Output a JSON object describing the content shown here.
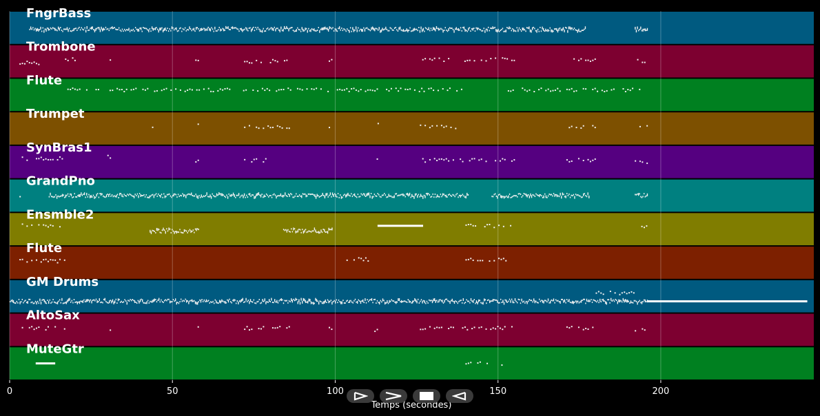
{
  "chart_data": {
    "type": "piano-roll",
    "xlabel": "Temps (secondes)",
    "xlim": [
      0,
      247
    ],
    "xticks": [
      0,
      50,
      100,
      150,
      200
    ],
    "grid": true,
    "tracks": [
      {
        "name": "FngrBass",
        "color": "#005a80",
        "segments": [
          [
            6,
            177,
            0.55,
            "dense"
          ],
          [
            192,
            196,
            0.55,
            "dense"
          ]
        ]
      },
      {
        "name": "Trombone",
        "color": "#7d0030",
        "segments": [
          [
            3,
            10,
            0.55,
            "sparse"
          ],
          [
            17,
            20,
            0.45,
            "sparse"
          ],
          [
            30,
            31,
            0.5,
            "sparse"
          ],
          [
            43,
            45,
            0.5,
            "sparse"
          ],
          [
            57,
            58,
            0.45,
            "sparse"
          ],
          [
            72,
            87,
            0.5,
            "sparse"
          ],
          [
            98,
            99,
            0.5,
            "sparse"
          ],
          [
            112,
            113,
            0.5,
            "sparse"
          ],
          [
            126,
            155,
            0.45,
            "sparse"
          ],
          [
            171,
            180,
            0.45,
            "sparse"
          ],
          [
            192,
            196,
            0.5,
            "sparse"
          ]
        ]
      },
      {
        "name": "Flute",
        "color": "#008020",
        "segments": [
          [
            17,
            139,
            0.35,
            "sparse"
          ],
          [
            153,
            194,
            0.35,
            "sparse"
          ]
        ]
      },
      {
        "name": "Trumpet",
        "color": "#7d5000",
        "segments": [
          [
            43,
            45,
            0.5,
            "sparse"
          ],
          [
            57,
            58,
            0.4,
            "sparse"
          ],
          [
            72,
            86,
            0.45,
            "sparse"
          ],
          [
            98,
            99,
            0.45,
            "sparse"
          ],
          [
            113,
            114,
            0.4,
            "sparse"
          ],
          [
            126,
            137,
            0.45,
            "sparse"
          ],
          [
            171,
            180,
            0.45,
            "sparse"
          ],
          [
            192,
            196,
            0.45,
            "sparse"
          ]
        ]
      },
      {
        "name": "SynBras1",
        "color": "#550080",
        "segments": [
          [
            3,
            17,
            0.4,
            "sparse"
          ],
          [
            30,
            31,
            0.35,
            "sparse"
          ],
          [
            57,
            58,
            0.5,
            "sparse"
          ],
          [
            72,
            79,
            0.45,
            "sparse"
          ],
          [
            98,
            99,
            0.5,
            "sparse"
          ],
          [
            112,
            113,
            0.45,
            "sparse"
          ],
          [
            126,
            155,
            0.45,
            "sparse"
          ],
          [
            171,
            180,
            0.45,
            "sparse"
          ],
          [
            192,
            196,
            0.5,
            "sparse"
          ]
        ]
      },
      {
        "name": "GrandPno",
        "color": "#008080",
        "segments": [
          [
            3,
            5,
            0.5,
            "sparse"
          ],
          [
            12,
            141,
            0.5,
            "dense"
          ],
          [
            148,
            178,
            0.5,
            "dense"
          ],
          [
            192,
            196,
            0.5,
            "dense"
          ]
        ]
      },
      {
        "name": "Ensmble2",
        "color": "#807d00",
        "segments": [
          [
            3,
            17,
            0.4,
            "sparse"
          ],
          [
            43,
            58,
            0.55,
            "dense"
          ],
          [
            84,
            99,
            0.55,
            "dense"
          ],
          [
            113,
            127,
            0.4,
            "solid"
          ],
          [
            140,
            155,
            0.4,
            "sparse"
          ],
          [
            194,
            196,
            0.45,
            "sparse"
          ]
        ]
      },
      {
        "name": "Flute",
        "color": "#7d2000",
        "segments": [
          [
            3,
            17,
            0.45,
            "sparse"
          ],
          [
            102,
            110,
            0.4,
            "sparse"
          ],
          [
            140,
            155,
            0.4,
            "sparse"
          ]
        ]
      },
      {
        "name": "GM Drums",
        "color": "#005a80",
        "segments": [
          [
            0,
            196,
            0.65,
            "dense"
          ],
          [
            180,
            192,
            0.4,
            "sparse"
          ],
          [
            196,
            245,
            0.65,
            "solid"
          ]
        ]
      },
      {
        "name": "AltoSax",
        "color": "#7d0030",
        "segments": [
          [
            3,
            17,
            0.45,
            "sparse"
          ],
          [
            30,
            31,
            0.5,
            "sparse"
          ],
          [
            57,
            58,
            0.45,
            "sparse"
          ],
          [
            72,
            86,
            0.45,
            "sparse"
          ],
          [
            98,
            99,
            0.45,
            "sparse"
          ],
          [
            112,
            113,
            0.5,
            "sparse"
          ],
          [
            126,
            155,
            0.45,
            "sparse"
          ],
          [
            171,
            180,
            0.45,
            "sparse"
          ],
          [
            192,
            196,
            0.5,
            "sparse"
          ]
        ]
      },
      {
        "name": "MuteGtr",
        "color": "#008020",
        "segments": [
          [
            8,
            14,
            0.5,
            "solid"
          ],
          [
            140,
            147,
            0.5,
            "sparse"
          ],
          [
            151,
            154,
            0.5,
            "sparse"
          ]
        ]
      }
    ]
  },
  "controls": [
    {
      "name": "play-icon",
      "glyph": "⊳"
    },
    {
      "name": "forward-icon",
      "glyph": ">"
    },
    {
      "name": "stop-icon",
      "glyph": "■"
    },
    {
      "name": "reverse-icon",
      "glyph": "⊲"
    }
  ]
}
